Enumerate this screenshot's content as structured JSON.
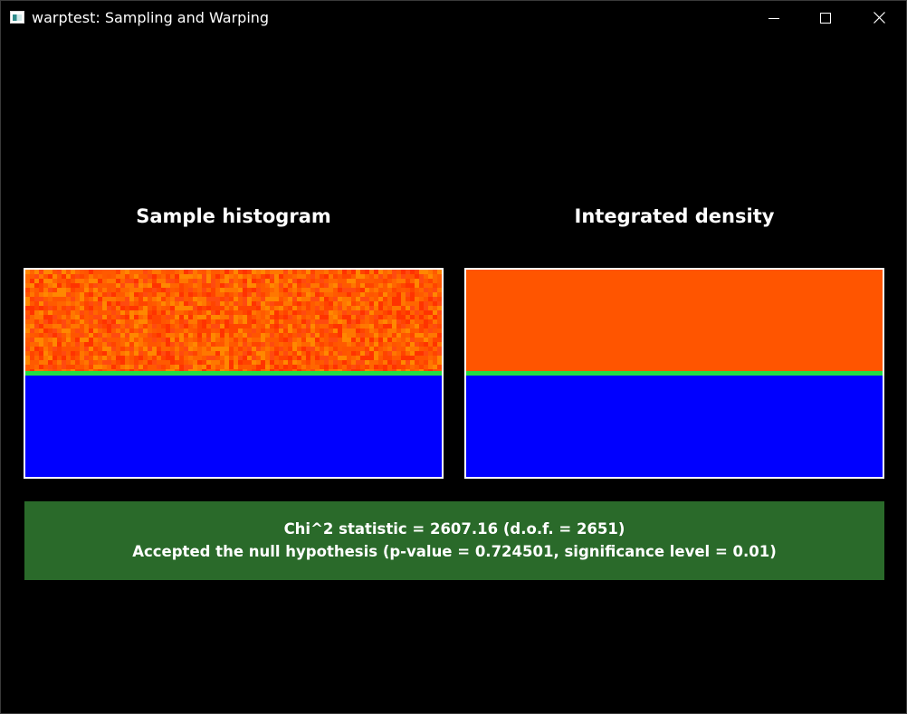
{
  "window": {
    "title": "warptest: Sampling and Warping",
    "icon": "app-icon"
  },
  "controls": {
    "minimize_icon": "minimize-icon",
    "maximize_icon": "maximize-icon",
    "close_icon": "close-icon"
  },
  "panels": {
    "left_title": "Sample histogram",
    "right_title": "Integrated density"
  },
  "colors": {
    "background": "#000000",
    "density_high": "#ff5500",
    "density_zero": "#0000ff",
    "boundary": "#22dd44",
    "result_box": "#2a6a2a",
    "panel_border": "#ffffff"
  },
  "result": {
    "line1": "Chi^2 statistic = 2607.16 (d.o.f. = 2651)",
    "line2": "Accepted the null hypothesis (p-value = 0.724501, significance level = 0.01)"
  }
}
